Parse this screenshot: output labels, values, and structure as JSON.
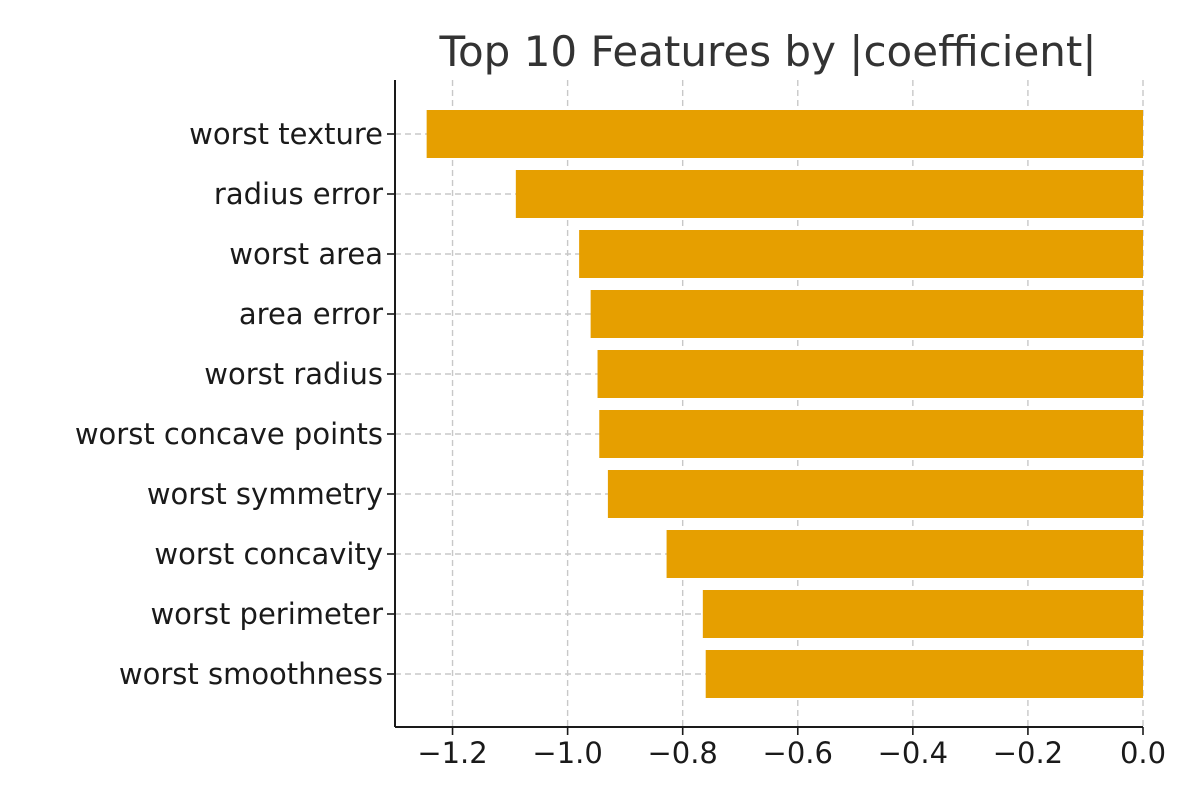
{
  "chart_data": {
    "type": "bar",
    "orientation": "horizontal",
    "title": "Top 10 Features by |coefficient|",
    "xlabel": "",
    "ylabel": "",
    "categories": [
      "worst texture",
      "radius error",
      "worst area",
      "area error",
      "worst radius",
      "worst concave points",
      "worst symmetry",
      "worst concavity",
      "worst perimeter",
      "worst smoothness"
    ],
    "values": [
      -1.245,
      -1.09,
      -0.98,
      -0.96,
      -0.948,
      -0.945,
      -0.93,
      -0.828,
      -0.765,
      -0.76
    ],
    "xlim": [
      -1.3,
      0.0
    ],
    "xticks": [
      -1.2,
      -1.0,
      -0.8,
      -0.6,
      -0.4,
      -0.2,
      0.0
    ],
    "xtick_labels": [
      "−1.2",
      "−1.0",
      "−0.8",
      "−0.6",
      "−0.4",
      "−0.2",
      "0.0"
    ],
    "grid": true,
    "bar_color": "#E69F00"
  }
}
